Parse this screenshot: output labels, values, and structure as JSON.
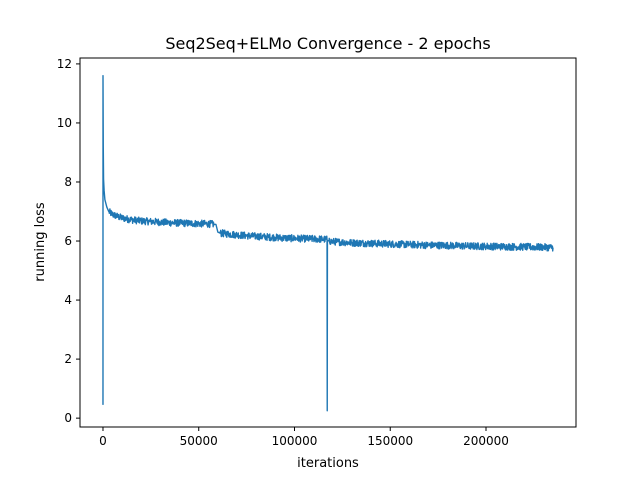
{
  "chart_data": {
    "type": "line",
    "title": "Seq2Seq+ELMo Convergence - 2 epochs",
    "xlabel": "iterations",
    "ylabel": "running loss",
    "xlim": [
      -12000,
      247000
    ],
    "ylim": [
      -0.3,
      12.2
    ],
    "grid": false,
    "xticks": [
      0,
      50000,
      100000,
      150000,
      200000
    ],
    "xtick_labels": [
      "0",
      "50000",
      "100000",
      "150000",
      "200000"
    ],
    "yticks": [
      0,
      2,
      4,
      6,
      8,
      10,
      12
    ],
    "ytick_labels": [
      "0",
      "2",
      "4",
      "6",
      "8",
      "10",
      "12"
    ],
    "color": "#1f77b4",
    "series": [
      {
        "x": [
          0,
          10,
          150,
          300,
          600,
          1000,
          2000,
          3000,
          5000,
          8000,
          10000,
          15000,
          20000,
          25000,
          30000,
          35000,
          40000,
          45000,
          50000,
          55000,
          58000,
          59000,
          60000,
          61000,
          65000,
          70000,
          75000,
          80000,
          85000,
          90000,
          95000,
          100000,
          105000,
          110000,
          115000,
          117000,
          117100,
          117200,
          118000,
          120000,
          125000,
          130000,
          140000,
          150000,
          160000,
          170000,
          180000,
          190000,
          200000,
          210000,
          220000,
          230000,
          235000
        ],
        "y": [
          0.45,
          11.6,
          9.2,
          8.1,
          7.7,
          7.4,
          7.15,
          7.0,
          6.9,
          6.82,
          6.78,
          6.72,
          6.68,
          6.66,
          6.64,
          6.62,
          6.61,
          6.6,
          6.59,
          6.58,
          6.57,
          6.56,
          6.3,
          6.27,
          6.24,
          6.21,
          6.18,
          6.16,
          6.14,
          6.12,
          6.1,
          6.09,
          6.08,
          6.07,
          6.06,
          6.05,
          0.25,
          6.02,
          6.0,
          5.98,
          5.96,
          5.94,
          5.92,
          5.9,
          5.88,
          5.86,
          5.85,
          5.83,
          5.82,
          5.81,
          5.8,
          5.79,
          5.78
        ]
      }
    ]
  }
}
